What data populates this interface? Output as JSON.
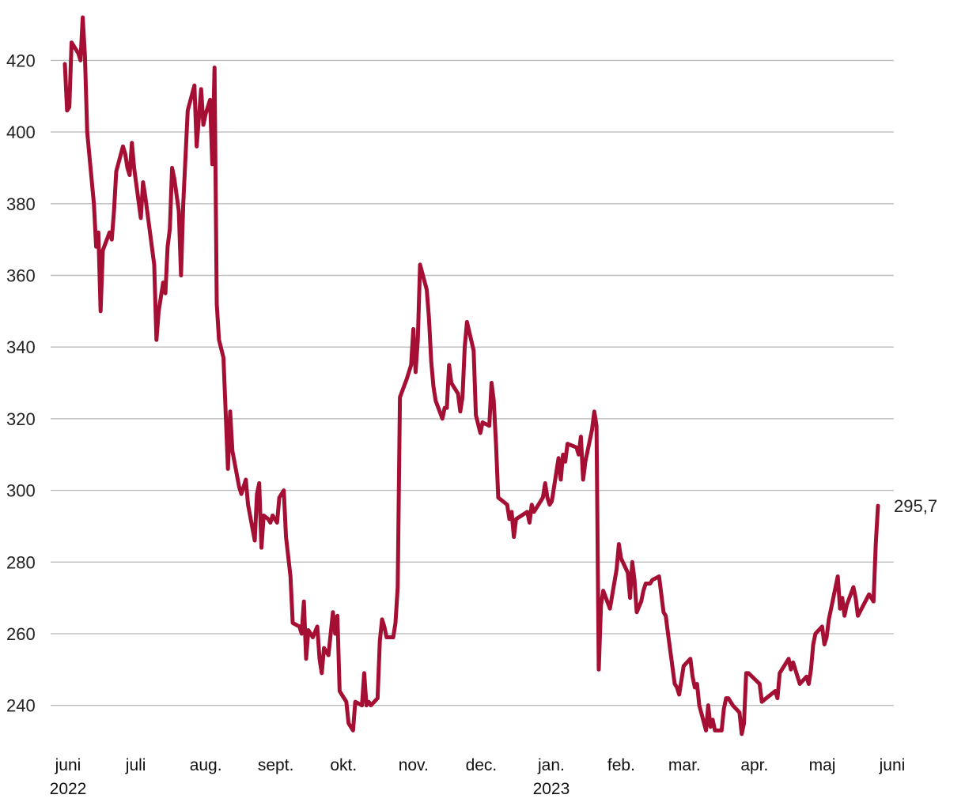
{
  "chart_data": {
    "type": "line",
    "title": "",
    "xlabel": "",
    "ylabel": "",
    "ylim": [
      230,
      432
    ],
    "grid": "horizontal",
    "y_ticks": [
      "240",
      "260",
      "280",
      "300",
      "320",
      "340",
      "360",
      "380",
      "400",
      "420"
    ],
    "y_tick_values": [
      240,
      260,
      280,
      300,
      320,
      340,
      360,
      380,
      400,
      420
    ],
    "x_ticks": [
      {
        "label": "juni",
        "year": "2022"
      },
      {
        "label": "juli",
        "year": ""
      },
      {
        "label": "aug.",
        "year": ""
      },
      {
        "label": "sept.",
        "year": ""
      },
      {
        "label": "okt.",
        "year": ""
      },
      {
        "label": "nov.",
        "year": ""
      },
      {
        "label": "dec.",
        "year": ""
      },
      {
        "label": "jan.",
        "year": "2023"
      },
      {
        "label": "feb.",
        "year": ""
      },
      {
        "label": "mar.",
        "year": ""
      },
      {
        "label": "apr.",
        "year": ""
      },
      {
        "label": "maj",
        "year": ""
      },
      {
        "label": "juni",
        "year": ""
      }
    ],
    "x_tick_dates": [
      "2022-06-01",
      "2022-07-01",
      "2022-08-01",
      "2022-09-01",
      "2022-10-01",
      "2022-11-01",
      "2022-12-01",
      "2023-01-01",
      "2023-02-01",
      "2023-03-01",
      "2023-04-01",
      "2023-05-01",
      "2023-06-01"
    ],
    "series": [
      {
        "color": "#a50f33",
        "end_label": "295,7",
        "points": [
          [
            "2022-06-01",
            419
          ],
          [
            "2022-06-02",
            406
          ],
          [
            "2022-06-03",
            407
          ],
          [
            "2022-06-04",
            425
          ],
          [
            "2022-06-07",
            422
          ],
          [
            "2022-06-08",
            420
          ],
          [
            "2022-06-09",
            432
          ],
          [
            "2022-06-10",
            421
          ],
          [
            "2022-06-11",
            400
          ],
          [
            "2022-06-14",
            380
          ],
          [
            "2022-06-15",
            368
          ],
          [
            "2022-06-16",
            372
          ],
          [
            "2022-06-17",
            350
          ],
          [
            "2022-06-18",
            367
          ],
          [
            "2022-06-21",
            372
          ],
          [
            "2022-06-22",
            370
          ],
          [
            "2022-06-23",
            378
          ],
          [
            "2022-06-24",
            389
          ],
          [
            "2022-06-27",
            396
          ],
          [
            "2022-06-28",
            394
          ],
          [
            "2022-06-29",
            390
          ],
          [
            "2022-06-30",
            388
          ],
          [
            "2022-07-01",
            397
          ],
          [
            "2022-07-02",
            390
          ],
          [
            "2022-07-05",
            376
          ],
          [
            "2022-07-06",
            386
          ],
          [
            "2022-07-07",
            382
          ],
          [
            "2022-07-11",
            363
          ],
          [
            "2022-07-12",
            342
          ],
          [
            "2022-07-13",
            350
          ],
          [
            "2022-07-15",
            358
          ],
          [
            "2022-07-16",
            355
          ],
          [
            "2022-07-17",
            368
          ],
          [
            "2022-07-18",
            373
          ],
          [
            "2022-07-19",
            390
          ],
          [
            "2022-07-20",
            387
          ],
          [
            "2022-07-22",
            378
          ],
          [
            "2022-07-23",
            360
          ],
          [
            "2022-07-24",
            380
          ],
          [
            "2022-07-26",
            406
          ],
          [
            "2022-07-29",
            413
          ],
          [
            "2022-07-30",
            396
          ],
          [
            "2022-08-01",
            412
          ],
          [
            "2022-08-02",
            402
          ],
          [
            "2022-08-03",
            405
          ],
          [
            "2022-08-05",
            409
          ],
          [
            "2022-08-06",
            391
          ],
          [
            "2022-08-07",
            418
          ],
          [
            "2022-08-08",
            352
          ],
          [
            "2022-08-09",
            342
          ],
          [
            "2022-08-11",
            337
          ],
          [
            "2022-08-13",
            306
          ],
          [
            "2022-08-14",
            322
          ],
          [
            "2022-08-15",
            311
          ],
          [
            "2022-08-18",
            301
          ],
          [
            "2022-08-19",
            299
          ],
          [
            "2022-08-21",
            303
          ],
          [
            "2022-08-22",
            296
          ],
          [
            "2022-08-25",
            286
          ],
          [
            "2022-08-26",
            299
          ],
          [
            "2022-08-27",
            302
          ],
          [
            "2022-08-28",
            284
          ],
          [
            "2022-08-29",
            293
          ],
          [
            "2022-08-31",
            292
          ],
          [
            "2022-09-01",
            291
          ],
          [
            "2022-09-02",
            293
          ],
          [
            "2022-09-04",
            291
          ],
          [
            "2022-09-05",
            298
          ],
          [
            "2022-09-07",
            300
          ],
          [
            "2022-09-08",
            287
          ],
          [
            "2022-09-10",
            276
          ],
          [
            "2022-09-11",
            263
          ],
          [
            "2022-09-14",
            262
          ],
          [
            "2022-09-15",
            260
          ],
          [
            "2022-09-16",
            269
          ],
          [
            "2022-09-17",
            253
          ],
          [
            "2022-09-18",
            261
          ],
          [
            "2022-09-20",
            259
          ],
          [
            "2022-09-22",
            262
          ],
          [
            "2022-09-23",
            253
          ],
          [
            "2022-09-24",
            249
          ],
          [
            "2022-09-25",
            256
          ],
          [
            "2022-09-27",
            254
          ],
          [
            "2022-09-29",
            266
          ],
          [
            "2022-09-30",
            260
          ],
          [
            "2022-10-01",
            265
          ],
          [
            "2022-10-02",
            244
          ],
          [
            "2022-10-05",
            241
          ],
          [
            "2022-10-06",
            235
          ],
          [
            "2022-10-08",
            233
          ],
          [
            "2022-10-09",
            241
          ],
          [
            "2022-10-12",
            240
          ],
          [
            "2022-10-13",
            249
          ],
          [
            "2022-10-14",
            240
          ],
          [
            "2022-10-15",
            241
          ],
          [
            "2022-10-16",
            240
          ],
          [
            "2022-10-19",
            242
          ],
          [
            "2022-10-20",
            258
          ],
          [
            "2022-10-21",
            264
          ],
          [
            "2022-10-22",
            262
          ],
          [
            "2022-10-23",
            259
          ],
          [
            "2022-10-26",
            259
          ],
          [
            "2022-10-27",
            263
          ],
          [
            "2022-10-28",
            273
          ],
          [
            "2022-10-29",
            326
          ],
          [
            "2022-11-01",
            331
          ],
          [
            "2022-11-03",
            335
          ],
          [
            "2022-11-04",
            345
          ],
          [
            "2022-11-05",
            333
          ],
          [
            "2022-11-06",
            342
          ],
          [
            "2022-11-07",
            363
          ],
          [
            "2022-11-10",
            356
          ],
          [
            "2022-11-11",
            348
          ],
          [
            "2022-11-12",
            336
          ],
          [
            "2022-11-13",
            329
          ],
          [
            "2022-11-14",
            325
          ],
          [
            "2022-11-17",
            320
          ],
          [
            "2022-11-18",
            323
          ],
          [
            "2022-11-19",
            323
          ],
          [
            "2022-11-20",
            335
          ],
          [
            "2022-11-21",
            330
          ],
          [
            "2022-11-24",
            327
          ],
          [
            "2022-11-25",
            322
          ],
          [
            "2022-11-26",
            326
          ],
          [
            "2022-11-27",
            340
          ],
          [
            "2022-11-28",
            347
          ],
          [
            "2022-12-01",
            339
          ],
          [
            "2022-12-02",
            321
          ],
          [
            "2022-12-04",
            316
          ],
          [
            "2022-12-05",
            319
          ],
          [
            "2022-12-08",
            318
          ],
          [
            "2022-12-09",
            330
          ],
          [
            "2022-12-10",
            325
          ],
          [
            "2022-12-11",
            313
          ],
          [
            "2022-12-12",
            298
          ],
          [
            "2022-12-16",
            296
          ],
          [
            "2022-12-17",
            292
          ],
          [
            "2022-12-18",
            294
          ],
          [
            "2022-12-19",
            287
          ],
          [
            "2022-12-20",
            292
          ],
          [
            "2022-12-25",
            294
          ],
          [
            "2022-12-26",
            291
          ],
          [
            "2022-12-27",
            296
          ],
          [
            "2022-12-28",
            294
          ],
          [
            "2023-01-01",
            298
          ],
          [
            "2023-01-02",
            302
          ],
          [
            "2023-01-03",
            298
          ],
          [
            "2023-01-04",
            296
          ],
          [
            "2023-01-05",
            297
          ],
          [
            "2023-01-08",
            309
          ],
          [
            "2023-01-09",
            303
          ],
          [
            "2023-01-10",
            310
          ],
          [
            "2023-01-11",
            308
          ],
          [
            "2023-01-12",
            313
          ],
          [
            "2023-01-16",
            312
          ],
          [
            "2023-01-17",
            310
          ],
          [
            "2023-01-18",
            315
          ],
          [
            "2023-01-19",
            303
          ],
          [
            "2023-01-20",
            308
          ],
          [
            "2023-01-23",
            317
          ],
          [
            "2023-01-24",
            322
          ],
          [
            "2023-01-25",
            318
          ],
          [
            "2023-01-26",
            250
          ],
          [
            "2023-01-27",
            268
          ],
          [
            "2023-01-28",
            272
          ],
          [
            "2023-01-31",
            267
          ],
          [
            "2023-02-03",
            278
          ],
          [
            "2023-02-04",
            285
          ],
          [
            "2023-02-05",
            281
          ],
          [
            "2023-02-08",
            277
          ],
          [
            "2023-02-09",
            270
          ],
          [
            "2023-02-10",
            280
          ],
          [
            "2023-02-11",
            275
          ],
          [
            "2023-02-12",
            266
          ],
          [
            "2023-02-14",
            269
          ],
          [
            "2023-02-15",
            272
          ],
          [
            "2023-02-16",
            274
          ],
          [
            "2023-02-18",
            274
          ],
          [
            "2023-02-19",
            275
          ],
          [
            "2023-02-22",
            276
          ],
          [
            "2023-02-24",
            266
          ],
          [
            "2023-02-25",
            265
          ],
          [
            "2023-02-26",
            260
          ],
          [
            "2023-03-01",
            246
          ],
          [
            "2023-03-02",
            245
          ],
          [
            "2023-03-03",
            243
          ],
          [
            "2023-03-05",
            251
          ],
          [
            "2023-03-08",
            253
          ],
          [
            "2023-03-09",
            248
          ],
          [
            "2023-03-10",
            245
          ],
          [
            "2023-03-11",
            246
          ],
          [
            "2023-03-12",
            240
          ],
          [
            "2023-03-15",
            233
          ],
          [
            "2023-03-16",
            240
          ],
          [
            "2023-03-17",
            234
          ],
          [
            "2023-03-18",
            236
          ],
          [
            "2023-03-19",
            233
          ],
          [
            "2023-03-22",
            233
          ],
          [
            "2023-03-23",
            239
          ],
          [
            "2023-03-24",
            242
          ],
          [
            "2023-03-25",
            242
          ],
          [
            "2023-03-26",
            241
          ],
          [
            "2023-03-27",
            240
          ],
          [
            "2023-03-30",
            238
          ],
          [
            "2023-03-31",
            232
          ],
          [
            "2023-04-01",
            235
          ],
          [
            "2023-04-02",
            249
          ],
          [
            "2023-04-03",
            249
          ],
          [
            "2023-04-08",
            246
          ],
          [
            "2023-04-09",
            241
          ],
          [
            "2023-04-15",
            244
          ],
          [
            "2023-04-16",
            242
          ],
          [
            "2023-04-17",
            249
          ],
          [
            "2023-04-18",
            250
          ],
          [
            "2023-04-21",
            253
          ],
          [
            "2023-04-22",
            250
          ],
          [
            "2023-04-23",
            252
          ],
          [
            "2023-04-26",
            246
          ],
          [
            "2023-04-29",
            248
          ],
          [
            "2023-04-30",
            246
          ],
          [
            "2023-05-01",
            250
          ],
          [
            "2023-05-02",
            257
          ],
          [
            "2023-05-03",
            260
          ],
          [
            "2023-05-06",
            262
          ],
          [
            "2023-05-07",
            257
          ],
          [
            "2023-05-08",
            259
          ],
          [
            "2023-05-09",
            264
          ],
          [
            "2023-05-13",
            276
          ],
          [
            "2023-05-14",
            267
          ],
          [
            "2023-05-15",
            270
          ],
          [
            "2023-05-16",
            265
          ],
          [
            "2023-05-17",
            268
          ],
          [
            "2023-05-20",
            273
          ],
          [
            "2023-05-21",
            270
          ],
          [
            "2023-05-22",
            265
          ],
          [
            "2023-05-27",
            271
          ],
          [
            "2023-05-28",
            270
          ],
          [
            "2023-05-29",
            269
          ],
          [
            "2023-05-30",
            285
          ],
          [
            "2023-05-31",
            295.7
          ]
        ]
      }
    ]
  }
}
